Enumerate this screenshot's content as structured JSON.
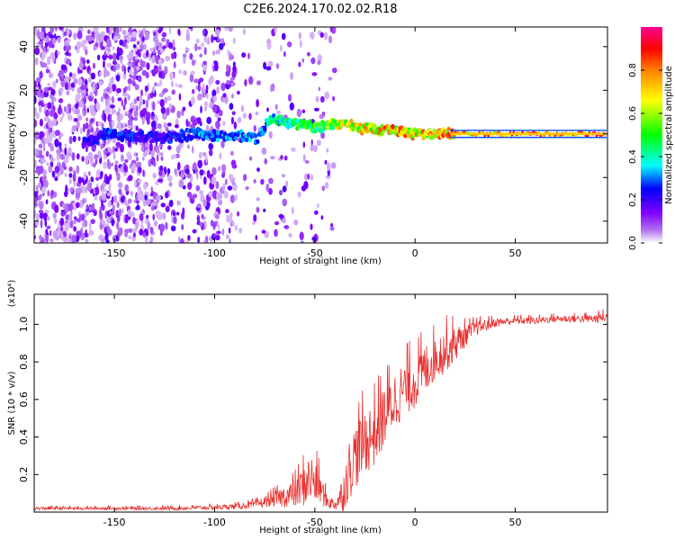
{
  "title": "C2E6.2024.170.02.02.R18",
  "chart_data": [
    {
      "type": "heatmap",
      "xlabel": "Height of straight line (km)",
      "ylabel": "Frequency (Hz)",
      "xlim": [
        -190,
        96
      ],
      "ylim": [
        -50,
        49
      ],
      "xticks": [
        -150,
        -100,
        -50,
        0,
        50
      ],
      "yticks": [
        -40,
        -20,
        0,
        20,
        40
      ],
      "colorbar": {
        "label": "Normalized spectral amplitude",
        "range": [
          0,
          1
        ],
        "ticks": [
          0.0,
          0.2,
          0.4,
          0.6,
          0.8
        ],
        "colormap": [
          "#ffffff",
          "#a020f0",
          "#0000ff",
          "#00ffff",
          "#00ff00",
          "#ffff00",
          "#ff8000",
          "#ff0000",
          "#ff00a0"
        ]
      },
      "ridge": {
        "x": [
          -160,
          -155,
          -125,
          -110,
          -100,
          -90,
          -78,
          -72,
          -65,
          -55,
          -48,
          -40,
          -32,
          -25,
          -15,
          -5,
          0,
          10,
          20,
          50,
          95
        ],
        "freq": [
          -3,
          0,
          -2,
          0,
          -1,
          -1,
          -2,
          8,
          5,
          4,
          3,
          5,
          4,
          2,
          2,
          1,
          0,
          0,
          0,
          0,
          0
        ],
        "amplitude": [
          0.25,
          0.3,
          0.25,
          0.35,
          0.35,
          0.35,
          0.35,
          0.45,
          0.5,
          0.55,
          0.6,
          0.7,
          0.75,
          0.8,
          0.85,
          0.85,
          0.8,
          0.85,
          0.9,
          0.95,
          0.95
        ]
      }
    },
    {
      "type": "line",
      "xlabel": "Height of straight line (km)",
      "ylabel": "SNR (10 * v/v)",
      "yscale_label": "(x10⁴)",
      "xlim": [
        -190,
        96
      ],
      "ylim": [
        0,
        1.16
      ],
      "xticks": [
        -150,
        -100,
        -50,
        0,
        50
      ],
      "yticks": [
        0.2,
        0.4,
        0.6,
        0.8,
        1.0
      ],
      "ytick_labels": [
        "0.2",
        "0.4",
        "0.6",
        "0.8",
        "1.0"
      ],
      "color": "#e8312f",
      "series": [
        {
          "x": [
            -190,
            -160,
            -120,
            -100,
            -90,
            -80,
            -70,
            -60,
            -55,
            -52,
            -48,
            -44,
            -40,
            -36,
            -33,
            -30,
            -25,
            -20,
            -15,
            -10,
            -5,
            0,
            5,
            10,
            15,
            20,
            25,
            30,
            40,
            50,
            60,
            70,
            80,
            90,
            95
          ],
          "y": [
            0.02,
            0.02,
            0.02,
            0.025,
            0.03,
            0.04,
            0.07,
            0.1,
            0.15,
            0.18,
            0.14,
            0.06,
            0.04,
            0.1,
            0.22,
            0.3,
            0.38,
            0.42,
            0.52,
            0.6,
            0.66,
            0.7,
            0.76,
            0.82,
            0.86,
            0.9,
            0.94,
            0.98,
            1.01,
            1.02,
            1.02,
            1.03,
            1.03,
            1.03,
            1.04
          ],
          "noise": [
            0.008,
            0.008,
            0.01,
            0.012,
            0.015,
            0.02,
            0.04,
            0.08,
            0.12,
            0.14,
            0.1,
            0.04,
            0.03,
            0.1,
            0.16,
            0.18,
            0.18,
            0.18,
            0.17,
            0.16,
            0.15,
            0.15,
            0.14,
            0.12,
            0.12,
            0.1,
            0.06,
            0.04,
            0.025,
            0.02,
            0.02,
            0.02,
            0.02,
            0.025,
            0.03
          ]
        }
      ]
    }
  ]
}
